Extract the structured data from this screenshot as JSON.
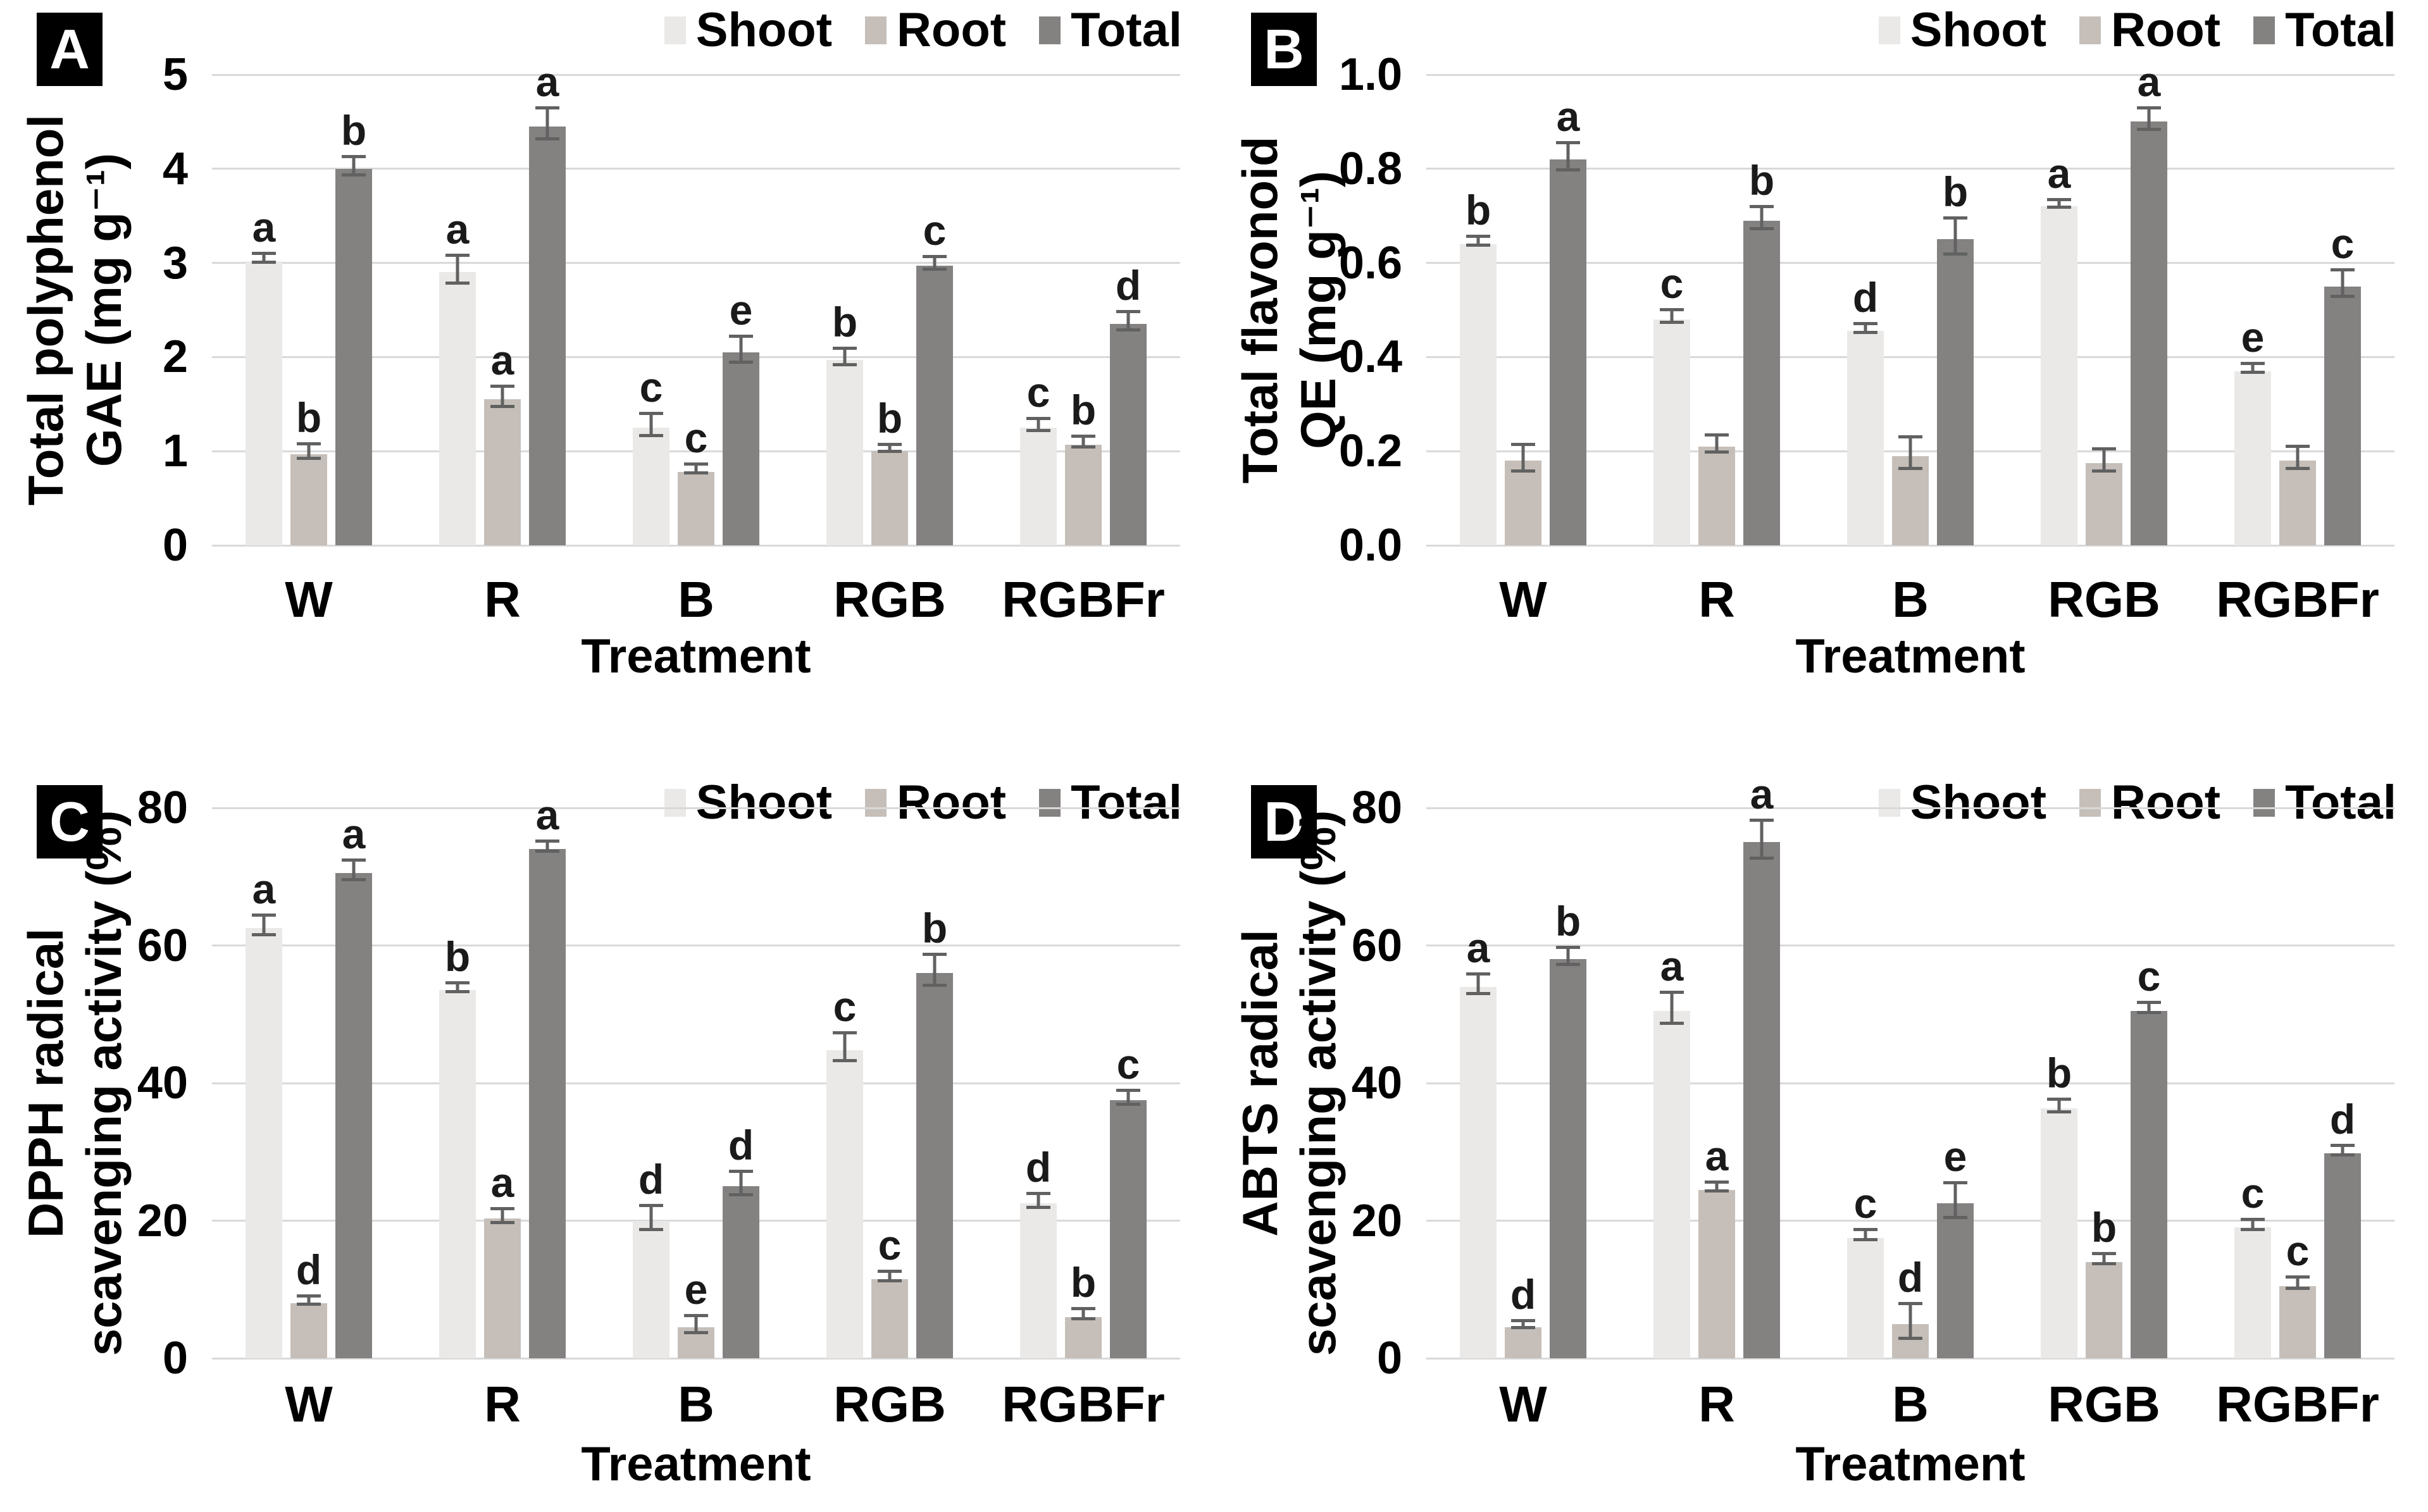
{
  "figure": {
    "background": "#ffffff",
    "grid_color": "#d9d9d9",
    "error_bar_color": "#616161",
    "letter_color": "#1a1a1a",
    "legend_labels": [
      "Shoot",
      "Root",
      "Total"
    ],
    "series_colors": {
      "Shoot": "#eae9e7",
      "Root": "#c6bfb9",
      "Total": "#848181"
    },
    "x_axis_title": "Treatment"
  },
  "chart_data": [
    {
      "type": "bar",
      "panel_label": "A",
      "ylabel": "Total polyphenol GAE (mg g⁻¹)",
      "ylabel_lines": [
        "Total polyphenol",
        "GAE (mg g⁻¹)"
      ],
      "xlabel": "Treatment",
      "categories": [
        "W",
        "R",
        "B",
        "RGB",
        "RGBFr"
      ],
      "ylim": [
        0,
        5
      ],
      "ytick_values": [
        0,
        1,
        2,
        3,
        4,
        5
      ],
      "ytick_labels": [
        "0",
        "1",
        "2",
        "3",
        "4",
        "5"
      ],
      "grid": "horizontal",
      "legend_position": "top-right",
      "series": [
        {
          "name": "Shoot",
          "values": [
            3.02,
            2.9,
            1.25,
            1.97,
            1.25
          ],
          "errors": [
            0.03,
            0.13,
            0.1,
            0.07,
            0.05
          ],
          "letters": [
            "a",
            "a",
            "c",
            "b",
            "c"
          ]
        },
        {
          "name": "Root",
          "values": [
            0.97,
            1.55,
            0.78,
            1.0,
            1.07
          ],
          "errors": [
            0.06,
            0.09,
            0.03,
            0.02,
            0.04
          ],
          "letters": [
            "b",
            "a",
            "c",
            "b",
            "b"
          ]
        },
        {
          "name": "Total",
          "values": [
            4.0,
            4.45,
            2.05,
            2.97,
            2.35
          ],
          "errors": [
            0.08,
            0.15,
            0.12,
            0.05,
            0.08
          ],
          "letters": [
            "b",
            "a",
            "e",
            "c",
            "d"
          ]
        }
      ]
    },
    {
      "type": "bar",
      "panel_label": "B",
      "ylabel": "Total flavonoid QE (mg g⁻¹)",
      "ylabel_lines": [
        "Total flavonoid",
        "QE (mg g⁻¹)"
      ],
      "xlabel": "Treatment",
      "categories": [
        "W",
        "R",
        "B",
        "RGB",
        "RGBFr"
      ],
      "ylim": [
        0,
        1.0
      ],
      "ytick_values": [
        0,
        0.2,
        0.4,
        0.6,
        0.8,
        1.0
      ],
      "ytick_labels": [
        "0.0",
        "0.2",
        "0.4",
        "0.6",
        "0.8",
        "1.0"
      ],
      "grid": "horizontal",
      "legend_position": "top-right",
      "series": [
        {
          "name": "Shoot",
          "values": [
            0.64,
            0.48,
            0.455,
            0.72,
            0.37
          ],
          "errors": [
            0.006,
            0.01,
            0.006,
            0.005,
            0.006
          ],
          "letters": [
            "b",
            "c",
            "d",
            "a",
            "e"
          ]
        },
        {
          "name": "Root",
          "values": [
            0.18,
            0.21,
            0.19,
            0.175,
            0.18
          ],
          "errors": [
            0.025,
            0.015,
            0.03,
            0.02,
            0.02
          ],
          "letters": [
            "",
            "",
            "",
            "",
            ""
          ]
        },
        {
          "name": "Total",
          "values": [
            0.82,
            0.69,
            0.65,
            0.9,
            0.55
          ],
          "errors": [
            0.025,
            0.02,
            0.035,
            0.02,
            0.025
          ],
          "letters": [
            "a",
            "b",
            "b",
            "a",
            "c"
          ]
        }
      ]
    },
    {
      "type": "bar",
      "panel_label": "C",
      "ylabel": "DPPH radical scavenging activity (%)",
      "ylabel_lines": [
        "DPPH radical",
        "scavenging activity (%)"
      ],
      "xlabel": "Treatment",
      "categories": [
        "W",
        "R",
        "B",
        "RGB",
        "RGBFr"
      ],
      "ylim": [
        0,
        80
      ],
      "ytick_values": [
        0,
        20,
        40,
        60,
        80
      ],
      "ytick_labels": [
        "0",
        "20",
        "40",
        "60",
        "80"
      ],
      "grid": "horizontal",
      "legend_position": "top-right",
      "series": [
        {
          "name": "Shoot",
          "values": [
            62.5,
            53.5,
            20,
            44.8,
            22.5
          ],
          "errors": [
            1.2,
            0.4,
            1.5,
            1.8,
            0.8
          ],
          "letters": [
            "a",
            "b",
            "d",
            "c",
            "d"
          ]
        },
        {
          "name": "Root",
          "values": [
            8,
            20.3,
            4.5,
            11.5,
            6
          ],
          "errors": [
            0.4,
            0.8,
            1.0,
            0.5,
            0.5
          ],
          "letters": [
            "d",
            "a",
            "e",
            "c",
            "b"
          ]
        },
        {
          "name": "Total",
          "values": [
            70.5,
            74,
            25,
            56,
            37.5
          ],
          "errors": [
            1.2,
            0.5,
            1.5,
            2.0,
            0.8
          ],
          "letters": [
            "a",
            "a",
            "d",
            "b",
            "c"
          ]
        }
      ]
    },
    {
      "type": "bar",
      "panel_label": "D",
      "ylabel": "ABTS radical scavenging activity (%)",
      "ylabel_lines": [
        "ABTS radical",
        "scavenging activity (%)"
      ],
      "xlabel": "Treatment",
      "categories": [
        "W",
        "R",
        "B",
        "RGB",
        "RGBFr"
      ],
      "ylim": [
        0,
        80
      ],
      "ytick_values": [
        0,
        20,
        40,
        60,
        80
      ],
      "ytick_labels": [
        "0",
        "20",
        "40",
        "60",
        "80"
      ],
      "grid": "horizontal",
      "legend_position": "top-right",
      "series": [
        {
          "name": "Shoot",
          "values": [
            54,
            50.5,
            17.5,
            36.3,
            19
          ],
          "errors": [
            1.2,
            2.0,
            0.5,
            0.7,
            0.5
          ],
          "letters": [
            "a",
            "a",
            "c",
            "b",
            "c"
          ]
        },
        {
          "name": "Root",
          "values": [
            4.5,
            24.5,
            5,
            14,
            10.5
          ],
          "errors": [
            0.3,
            0.4,
            2.3,
            0.5,
            0.6
          ],
          "letters": [
            "d",
            "a",
            "d",
            "b",
            "c"
          ]
        },
        {
          "name": "Total",
          "values": [
            58,
            75,
            22.5,
            50.5,
            29.8
          ],
          "errors": [
            1.0,
            2.5,
            2.3,
            0.5,
            0.5
          ],
          "letters": [
            "b",
            "a",
            "e",
            "c",
            "d"
          ]
        }
      ]
    }
  ]
}
